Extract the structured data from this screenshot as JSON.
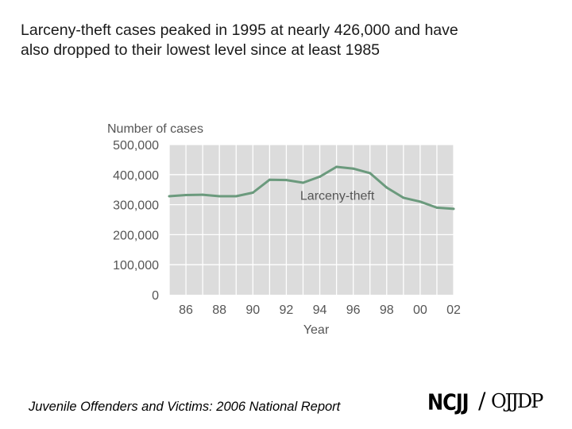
{
  "slide": {
    "title": "Larceny-theft cases peaked in 1995 at nearly 426,000 and have\nalso dropped to their lowest level since at least 1985",
    "footer": "Juvenile Offenders and Victims: 2006 National Report",
    "logo": {
      "left": "NCJJ",
      "right": "OJJDP"
    }
  },
  "chart_data": {
    "type": "line",
    "title": "",
    "ylabel": "Number of cases",
    "xlabel": "Year",
    "x": [
      1985,
      1986,
      1987,
      1988,
      1989,
      1990,
      1991,
      1992,
      1993,
      1994,
      1995,
      1996,
      1997,
      1998,
      1999,
      2000,
      2001,
      2002
    ],
    "ylim": [
      0,
      500000
    ],
    "xlim": [
      1985,
      2002
    ],
    "y_ticks": [
      0,
      100000,
      200000,
      300000,
      400000,
      500000
    ],
    "y_tick_labels": [
      "0",
      "100,000",
      "200,000",
      "300,000",
      "400,000",
      "500,000"
    ],
    "x_tick_values": [
      1986,
      1988,
      1990,
      1992,
      1994,
      1996,
      1998,
      2000,
      2002
    ],
    "x_tick_labels": [
      "86",
      "88",
      "90",
      "92",
      "94",
      "96",
      "98",
      "00",
      "02"
    ],
    "grid": true,
    "series": [
      {
        "name": "Larceny-theft",
        "color": "#6b9a7d",
        "values": [
          328000,
          332000,
          333000,
          328000,
          328000,
          340000,
          383000,
          382000,
          373000,
          393000,
          426000,
          420000,
          405000,
          357000,
          323000,
          310000,
          290000,
          286000
        ]
      }
    ],
    "annotation": {
      "text": "Larceny-theft",
      "x": 1995,
      "y": 330000
    }
  }
}
